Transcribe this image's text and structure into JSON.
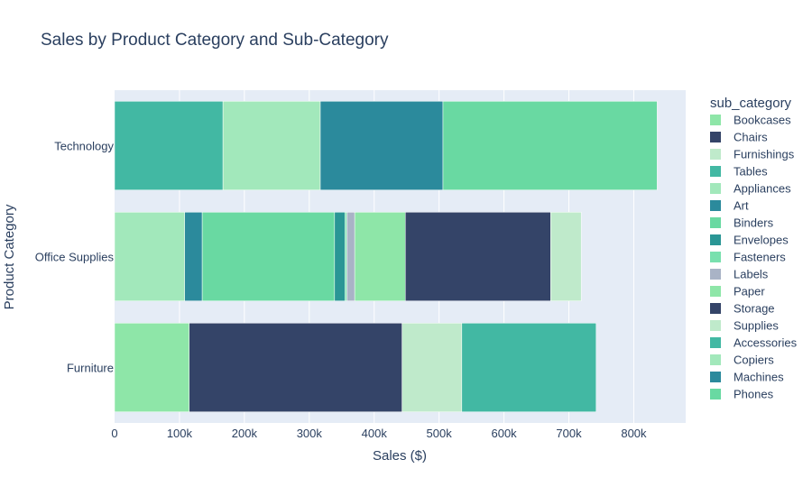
{
  "chart_data": {
    "type": "bar",
    "orientation": "horizontal",
    "barmode": "stack",
    "title": "Sales by Product Category and Sub-Category",
    "xlabel": "Sales ($)",
    "ylabel": "Product Category",
    "xlim": [
      0,
      880000
    ],
    "x_ticks": [
      0,
      100000,
      200000,
      300000,
      400000,
      500000,
      600000,
      700000,
      800000
    ],
    "x_tick_labels": [
      "0",
      "100k",
      "200k",
      "300k",
      "400k",
      "500k",
      "600k",
      "700k",
      "800k"
    ],
    "categories": [
      "Furniture",
      "Office Supplies",
      "Technology"
    ],
    "grid": true,
    "legend_title": "sub_category",
    "legend_position": "right",
    "series": [
      {
        "name": "Bookcases",
        "category": "Furniture",
        "value": 115000,
        "color": "#8ee6a8"
      },
      {
        "name": "Chairs",
        "category": "Furniture",
        "value": 328000,
        "color": "#344468"
      },
      {
        "name": "Furnishings",
        "category": "Furniture",
        "value": 92000,
        "color": "#bfeacb"
      },
      {
        "name": "Tables",
        "category": "Furniture",
        "value": 207000,
        "color": "#42b8a3"
      },
      {
        "name": "Appliances",
        "category": "Office Supplies",
        "value": 108000,
        "color": "#a2e8bb"
      },
      {
        "name": "Art",
        "category": "Office Supplies",
        "value": 27000,
        "color": "#2b8a9c"
      },
      {
        "name": "Binders",
        "category": "Office Supplies",
        "value": 204000,
        "color": "#69d9a2"
      },
      {
        "name": "Envelopes",
        "category": "Office Supplies",
        "value": 16000,
        "color": "#2a9695"
      },
      {
        "name": "Fasteners",
        "category": "Office Supplies",
        "value": 3000,
        "color": "#79e0ae"
      },
      {
        "name": "Labels",
        "category": "Office Supplies",
        "value": 12000,
        "color": "#a9b3c6"
      },
      {
        "name": "Paper",
        "category": "Office Supplies",
        "value": 78000,
        "color": "#8ee6a8"
      },
      {
        "name": "Storage",
        "category": "Office Supplies",
        "value": 224000,
        "color": "#344468"
      },
      {
        "name": "Supplies",
        "category": "Office Supplies",
        "value": 47000,
        "color": "#bfeacb"
      },
      {
        "name": "Accessories",
        "category": "Technology",
        "value": 167000,
        "color": "#42b8a3"
      },
      {
        "name": "Copiers",
        "category": "Technology",
        "value": 150000,
        "color": "#a2e8bb"
      },
      {
        "name": "Machines",
        "category": "Technology",
        "value": 189000,
        "color": "#2b8a9c"
      },
      {
        "name": "Phones",
        "category": "Technology",
        "value": 330000,
        "color": "#69d9a2"
      }
    ]
  }
}
